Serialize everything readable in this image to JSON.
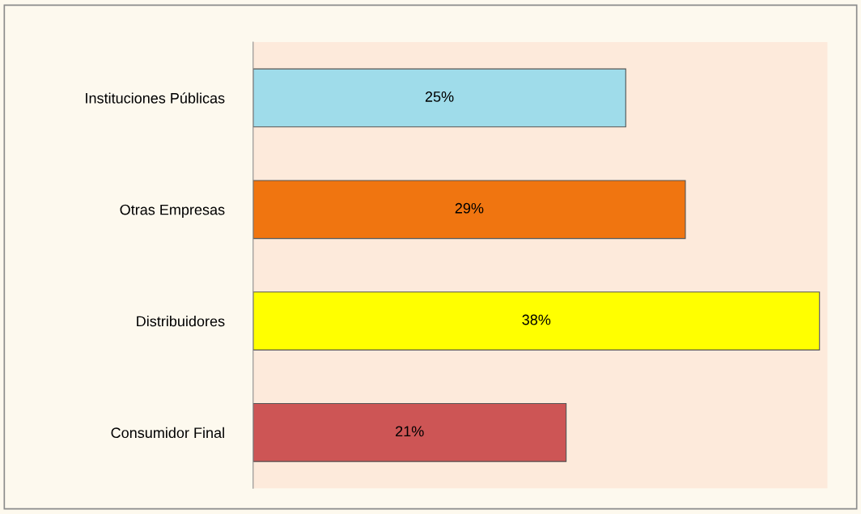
{
  "chart_data": {
    "type": "bar",
    "orientation": "horizontal",
    "categories": [
      "Instituciones Públicas",
      "Otras Empresas",
      "Distribuidores",
      "Consumidor Final"
    ],
    "values": [
      25,
      29,
      38,
      21
    ],
    "colors": [
      "#9fdcea",
      "#f07510",
      "#ffff00",
      "#cd5555"
    ],
    "value_labels": [
      "25%",
      "29%",
      "38%",
      "21%"
    ],
    "grid": false,
    "legend": false
  }
}
